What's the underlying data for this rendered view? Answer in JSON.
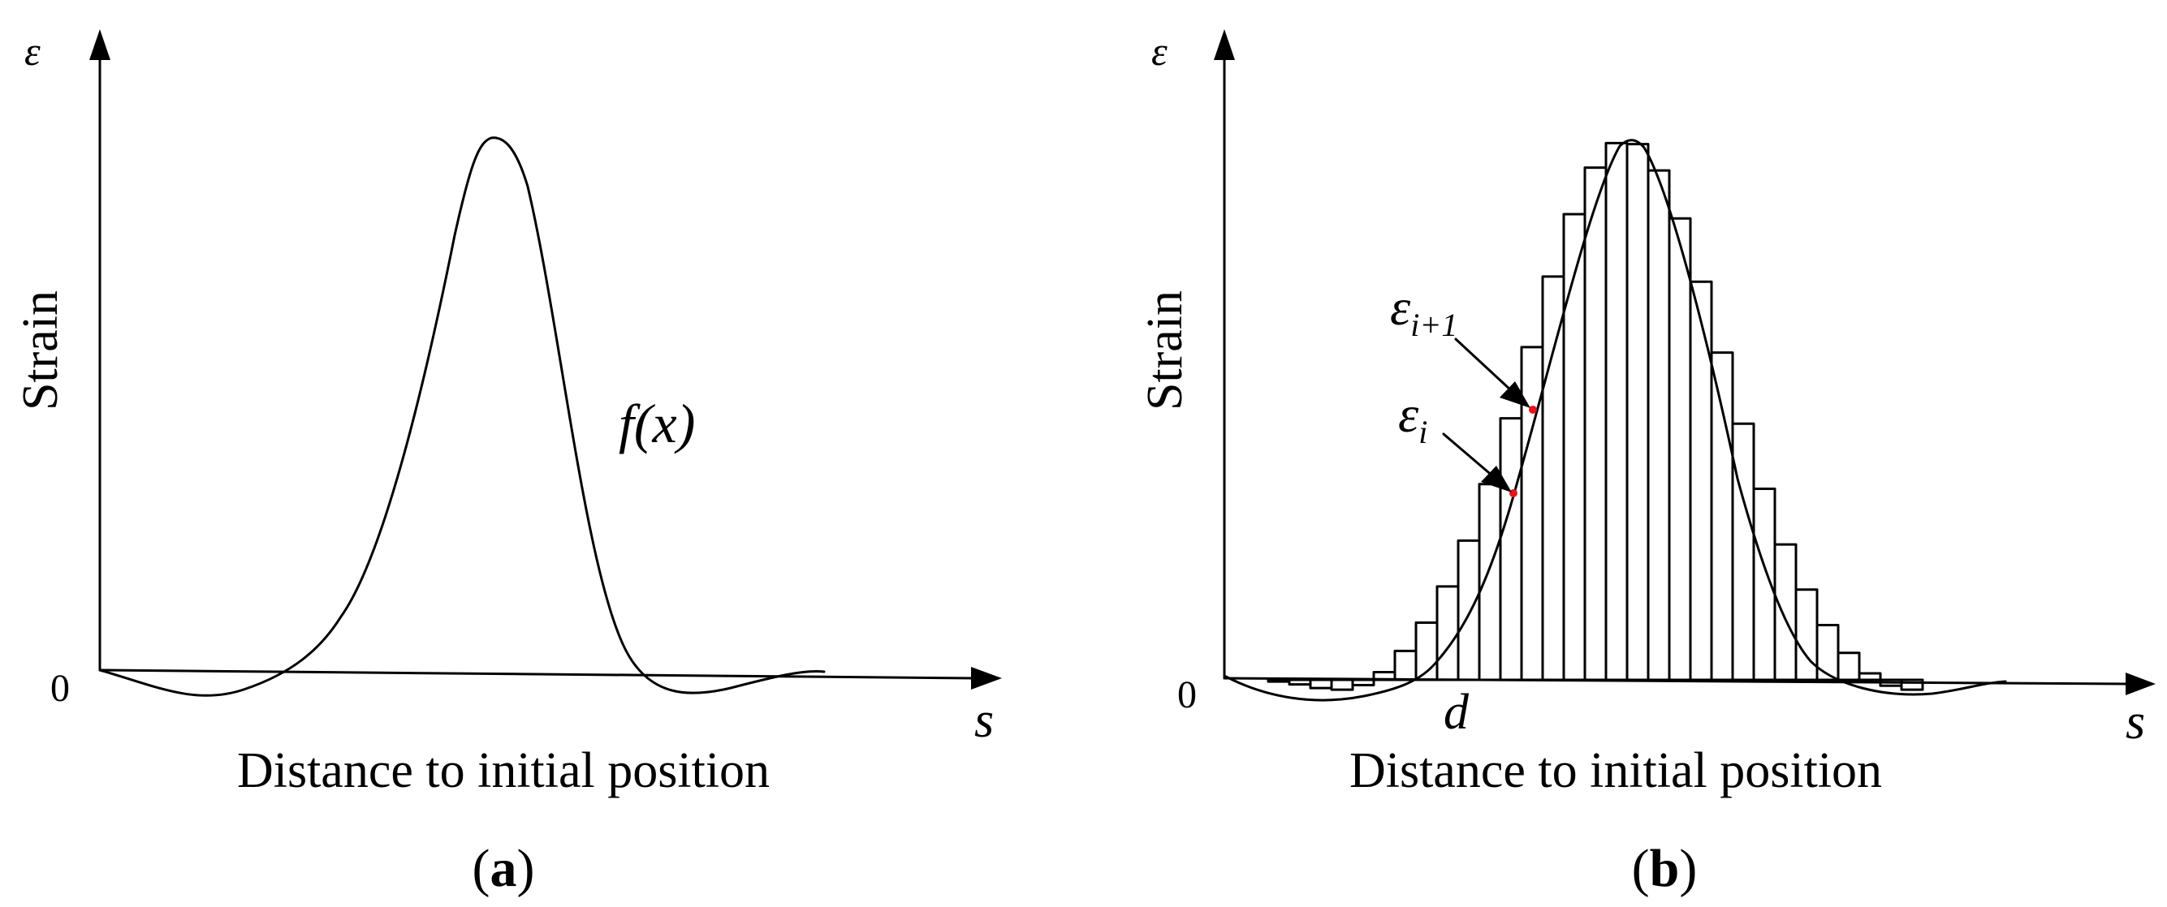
{
  "panels": [
    {
      "id": "a",
      "y_symbol": "ε",
      "ylabel": "Strain",
      "origin": "0",
      "x_symbol": "s",
      "xlabel": "Distance to initial position",
      "function_label": "f(x)",
      "caption_paren_open": "(",
      "caption_letter": "a",
      "caption_paren_close": ")"
    },
    {
      "id": "b",
      "y_symbol": "ε",
      "ylabel": "Strain",
      "origin": "0",
      "x_symbol": "s",
      "xlabel": "Distance to initial position",
      "interval_label": "d",
      "eps_i_base": "ε",
      "eps_i_sub": "i",
      "eps_i1_base": "ε",
      "eps_i1_sub": "i+1",
      "caption_paren_open": "(",
      "caption_letter": "b",
      "caption_paren_close": ")"
    }
  ],
  "colors": {
    "ink": "#000000",
    "highlight_point": "#e8141c"
  }
}
